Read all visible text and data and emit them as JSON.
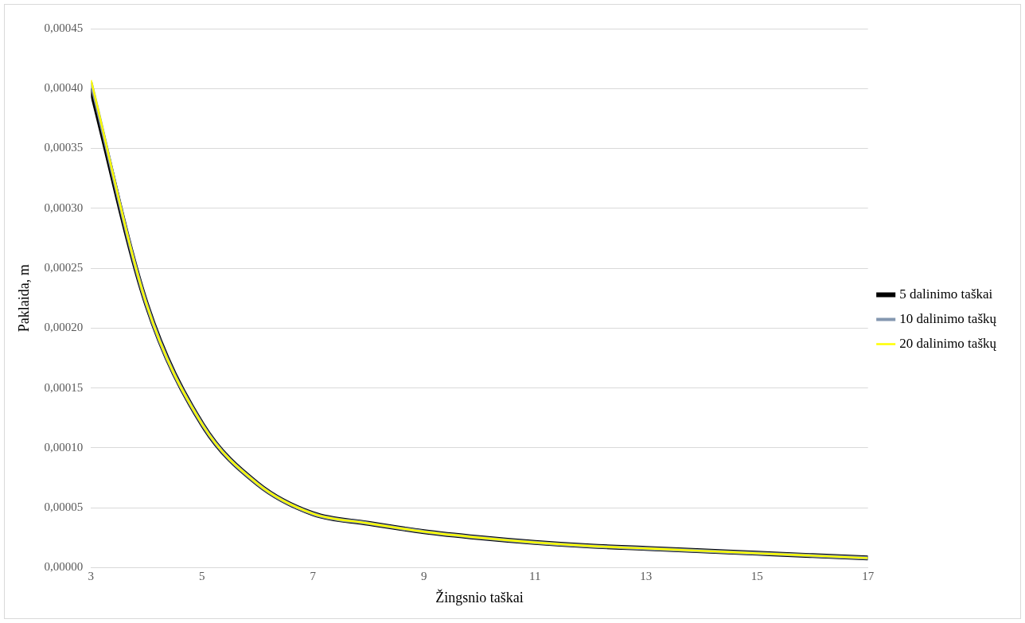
{
  "chart_data": {
    "type": "line",
    "xlabel": "Žingsnio taškai",
    "ylabel": "Paklaida, m",
    "x": [
      3,
      4,
      5,
      6,
      7,
      8,
      9,
      10,
      11,
      12,
      13,
      14,
      15,
      16,
      17
    ],
    "series": [
      {
        "name": "5 dalinimo taškai",
        "color": "#000000",
        "values": [
          0.0004,
          0.00022,
          0.00012,
          7e-05,
          4.5e-05,
          3.7e-05,
          3e-05,
          2.5e-05,
          2.1e-05,
          1.8e-05,
          1.6e-05,
          1.4e-05,
          1.2e-05,
          1e-05,
          8e-06
        ]
      },
      {
        "name": "10 dalinimo taškų",
        "color": "#8497b0",
        "values": [
          0.000405,
          0.00022,
          0.00012,
          7e-05,
          4.5e-05,
          3.7e-05,
          3e-05,
          2.5e-05,
          2.1e-05,
          1.8e-05,
          1.6e-05,
          1.4e-05,
          1.2e-05,
          1e-05,
          8e-06
        ]
      },
      {
        "name": "20 dalinimo taškų",
        "color": "#ffff00",
        "values": [
          0.000407,
          0.00022,
          0.00012,
          7e-05,
          4.5e-05,
          3.7e-05,
          3e-05,
          2.5e-05,
          2.1e-05,
          1.8e-05,
          1.6e-05,
          1.4e-05,
          1.2e-05,
          1e-05,
          8e-06
        ]
      }
    ],
    "xlim": [
      3,
      17
    ],
    "xticks": [
      3,
      5,
      7,
      9,
      11,
      13,
      15,
      17
    ],
    "ylim": [
      0,
      0.00045
    ],
    "yticks": [
      {
        "value": 0,
        "label": "0,00000"
      },
      {
        "value": 5e-05,
        "label": "0,00005"
      },
      {
        "value": 0.0001,
        "label": "0,00010"
      },
      {
        "value": 0.00015,
        "label": "0,00015"
      },
      {
        "value": 0.0002,
        "label": "0,00020"
      },
      {
        "value": 0.00025,
        "label": "0,00025"
      },
      {
        "value": 0.0003,
        "label": "0,00030"
      },
      {
        "value": 0.00035,
        "label": "0,00035"
      },
      {
        "value": 0.0004,
        "label": "0,00040"
      },
      {
        "value": 0.00045,
        "label": "0,00045"
      }
    ],
    "grid": "y",
    "legend": "right",
    "marker": "none",
    "line_style": "solid"
  }
}
